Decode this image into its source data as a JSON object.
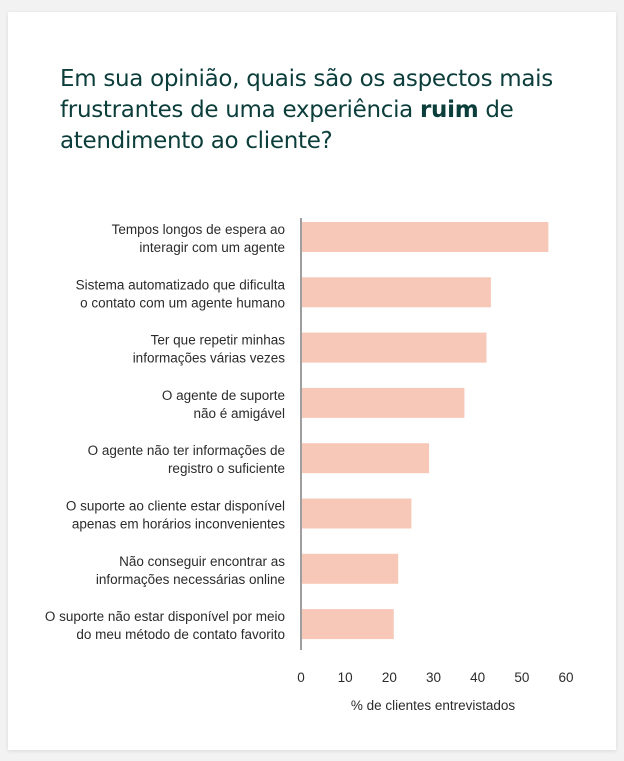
{
  "title": {
    "part1": "Em sua opinião, quais são os aspectos mais frustrantes de uma experiência ",
    "emphasis": "ruim",
    "part2": " de atendimento ao cliente?"
  },
  "colors": {
    "bar": "#f7c8b8",
    "axis": "#6b6b6b",
    "grid": "#d6d6d6",
    "title": "#0b3d3a"
  },
  "chart_data": {
    "type": "bar",
    "orientation": "horizontal",
    "categories": [
      [
        "Tempos longos de espera ao",
        "interagir com um agente"
      ],
      [
        "Sistema automatizado que dificulta",
        "o contato com um agente humano"
      ],
      [
        "Ter que repetir minhas",
        "informações várias vezes"
      ],
      [
        "O agente de suporte",
        "não é amigável"
      ],
      [
        "O agente não ter informações de",
        "registro o suficiente"
      ],
      [
        "O suporte ao cliente estar disponível",
        "apenas em horários inconvenientes"
      ],
      [
        "Não conseguir encontrar as",
        "informações necessárias online"
      ],
      [
        "O suporte não estar disponível por meio",
        "do meu método de contato favorito"
      ]
    ],
    "values": [
      56,
      43,
      42,
      37,
      29,
      25,
      22,
      21
    ],
    "xlabel": "% de clientes entrevistados",
    "ylabel": "",
    "xlim": [
      0,
      60
    ],
    "xticks": [
      0,
      10,
      20,
      30,
      40,
      50,
      60
    ],
    "grid": true
  }
}
